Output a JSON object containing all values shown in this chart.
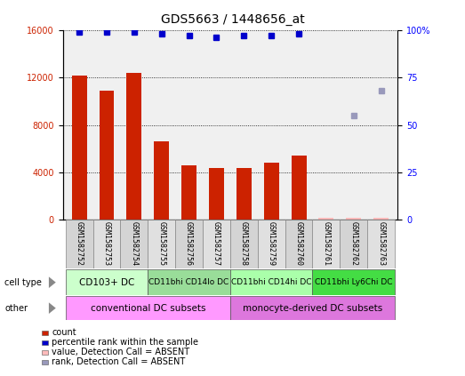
{
  "title": "GDS5663 / 1448656_at",
  "samples": [
    "GSM1582752",
    "GSM1582753",
    "GSM1582754",
    "GSM1582755",
    "GSM1582756",
    "GSM1582757",
    "GSM1582758",
    "GSM1582759",
    "GSM1582760",
    "GSM1582761",
    "GSM1582762",
    "GSM1582763"
  ],
  "counts": [
    12200,
    10900,
    12400,
    6600,
    4600,
    4400,
    4400,
    4800,
    5400,
    200,
    200,
    150
  ],
  "counts_absent": [
    false,
    false,
    false,
    false,
    false,
    false,
    false,
    false,
    false,
    true,
    true,
    true
  ],
  "present_ranks": [
    99,
    99,
    99,
    98,
    97,
    96,
    97,
    97,
    98
  ],
  "absent_rank_indices": [
    10,
    11
  ],
  "absent_rank_values": [
    55,
    68
  ],
  "ylim_left": [
    0,
    16000
  ],
  "ylim_right": [
    0,
    100
  ],
  "yticks_left": [
    0,
    4000,
    8000,
    12000,
    16000
  ],
  "yticks_right": [
    0,
    25,
    50,
    75,
    100
  ],
  "bar_color": "#cc2200",
  "bar_color_absent": "#ffbbbb",
  "dot_color_present": "#0000cc",
  "dot_color_absent": "#9999bb",
  "ct_colors": [
    "#ccffcc",
    "#99dd99",
    "#aaffaa",
    "#44dd44"
  ],
  "ct_labels": [
    "CD103+ DC",
    "CD11bhi CD14lo DC",
    "CD11bhi CD14hi DC",
    "CD11bhi Ly6Chi DC"
  ],
  "ct_ranges": [
    [
      0,
      2
    ],
    [
      3,
      5
    ],
    [
      6,
      8
    ],
    [
      9,
      11
    ]
  ],
  "ot_colors": [
    "#ff99ff",
    "#dd77dd"
  ],
  "ot_labels": [
    "conventional DC subsets",
    "monocyte-derived DC subsets"
  ],
  "ot_ranges": [
    [
      0,
      5
    ],
    [
      6,
      11
    ]
  ],
  "bg_color": "#ffffff",
  "plot_bg": "#f0f0f0",
  "title_fontsize": 10,
  "tick_fontsize": 7,
  "sample_fontsize": 6
}
